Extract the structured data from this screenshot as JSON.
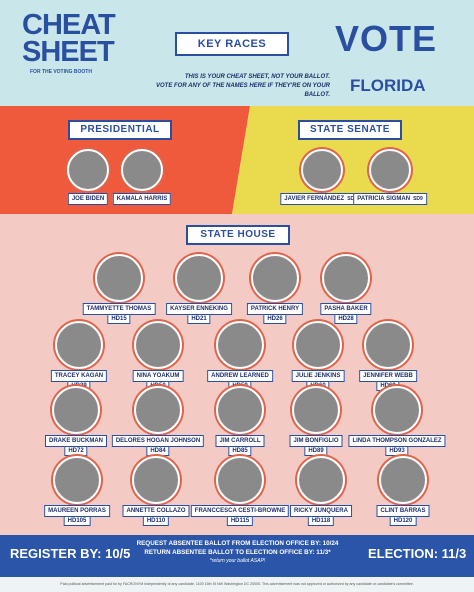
{
  "header": {
    "title": "CHEAT SHEET",
    "subtitle": "FOR THE VOTING BOOTH",
    "banner": "KEY RACES",
    "intro": [
      "THIS IS YOUR CHEAT SHEET, NOT YOUR BALLOT.",
      "VOTE FOR ANY OF THE NAMES HERE IF THEY'RE ON YOUR BALLOT."
    ],
    "vote": "VOTE",
    "state": "FLORIDA"
  },
  "presidential": {
    "title": "PRESIDENTIAL",
    "candidates": [
      {
        "name": "JOE BIDEN"
      },
      {
        "name": "KAMALA HARRIS"
      }
    ]
  },
  "state_senate": {
    "title": "STATE SENATE",
    "candidates": [
      {
        "name": "JAVIER FERNÁNDEZ",
        "district": "SD39"
      },
      {
        "name": "PATRICIA SIGMAN",
        "district": "SD9"
      }
    ]
  },
  "state_house": {
    "title": "STATE HOUSE",
    "rows": [
      [
        {
          "name": "TAMMYETTE THOMAS",
          "district": "HD15"
        },
        {
          "name": "KAYSER ENNEKING",
          "district": "HD21"
        },
        {
          "name": "PATRICK HENRY",
          "district": "HD26"
        },
        {
          "name": "PASHA BAKER",
          "district": "HD28"
        }
      ],
      [
        {
          "name": "TRACEY KAGAN",
          "district": "HD29"
        },
        {
          "name": "NINA YOAKUM",
          "district": "HD50"
        },
        {
          "name": "ANDREW LEARNED",
          "district": "HD59"
        },
        {
          "name": "JULIE JENKINS",
          "district": "HD60"
        },
        {
          "name": "JENNIFER WEBB",
          "district": "HD69"
        }
      ],
      [
        {
          "name": "DRAKE BUCKMAN",
          "district": "HD72"
        },
        {
          "name": "DELORES HOGAN JOHNSON",
          "district": "HD84"
        },
        {
          "name": "JIM CARROLL",
          "district": "HD85"
        },
        {
          "name": "JIM BONFIGLIO",
          "district": "HD89"
        },
        {
          "name": "LINDA THOMPSON GONZALEZ",
          "district": "HD93"
        }
      ],
      [
        {
          "name": "MAUREEN PORRAS",
          "district": "HD105"
        },
        {
          "name": "ANNETTE COLLAZO",
          "district": "HD110"
        },
        {
          "name": "FRANCCESCA CESTI-BROWNE",
          "district": "HD115"
        },
        {
          "name": "RICKY JUNQUERA",
          "district": "HD118"
        },
        {
          "name": "CLINT BARRAS",
          "district": "HD120"
        }
      ]
    ]
  },
  "footer": {
    "register": "REGISTER BY: 10/5",
    "request": "REQUEST ABSENTEE BALLOT FROM ELECTION OFFICE BY: 10/24",
    "return": "RETURN ABSENTEE BALLOT TO ELECTION OFFICE BY: 11/3*",
    "note": "*return your ballot ASAP!",
    "election": "ELECTION: 11/3"
  },
  "disclaimer": "Paid political advertisement paid for by FACRONYM independently of any candidate, 1100 15th St NW Washington DC 20005. This advertisement was not approved or authorized by any candidate or candidate's committee."
}
